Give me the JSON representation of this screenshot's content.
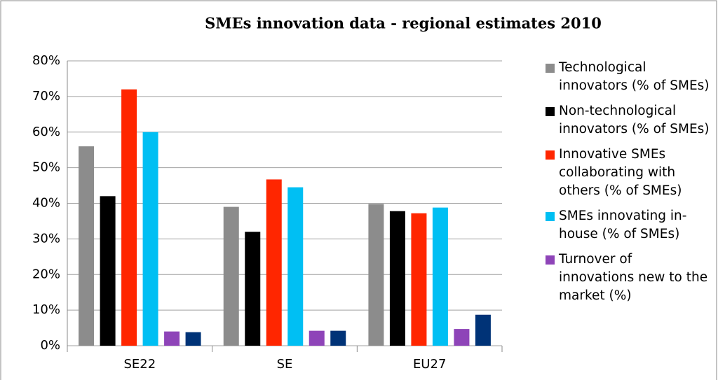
{
  "chart_data": {
    "type": "bar",
    "title": "SMEs innovation data  - regional estimates 2010",
    "categories": [
      "SE22",
      "SE",
      "EU27"
    ],
    "series": [
      {
        "name": "Technological innovators (% of SMEs)",
        "color": "#8c8c8c",
        "values": [
          56,
          39,
          39.8
        ]
      },
      {
        "name": "Non-technological innovators  (% of SMEs)",
        "color": "#000000",
        "values": [
          42,
          32,
          37.8
        ]
      },
      {
        "name": "Innovative SMEs collaborating with others  (% of SMEs)",
        "color": "#ff2600",
        "values": [
          72,
          46.7,
          37.2
        ]
      },
      {
        "name": "SMEs innovating in-house (% of SMEs)",
        "color": "#00bff3",
        "values": [
          60,
          44.5,
          38.8
        ]
      },
      {
        "name": "Turnover of innovations new to the market (%)",
        "color": "#8e44b8",
        "values": [
          4,
          4.2,
          4.7
        ]
      },
      {
        "color": "#003377",
        "values": [
          3.8,
          4.2,
          8.7
        ]
      }
    ],
    "ylim": [
      0,
      80
    ],
    "yticks": [
      {
        "value": 0,
        "label": "0%"
      },
      {
        "value": 10,
        "label": "10%"
      },
      {
        "value": 20,
        "label": "20%"
      },
      {
        "value": 30,
        "label": "30%"
      },
      {
        "value": 40,
        "label": "40%"
      },
      {
        "value": 50,
        "label": "50%"
      },
      {
        "value": 60,
        "label": "60%"
      },
      {
        "value": 70,
        "label": "70%"
      },
      {
        "value": 80,
        "label": "80%"
      }
    ],
    "grid": true,
    "legend": "right"
  }
}
